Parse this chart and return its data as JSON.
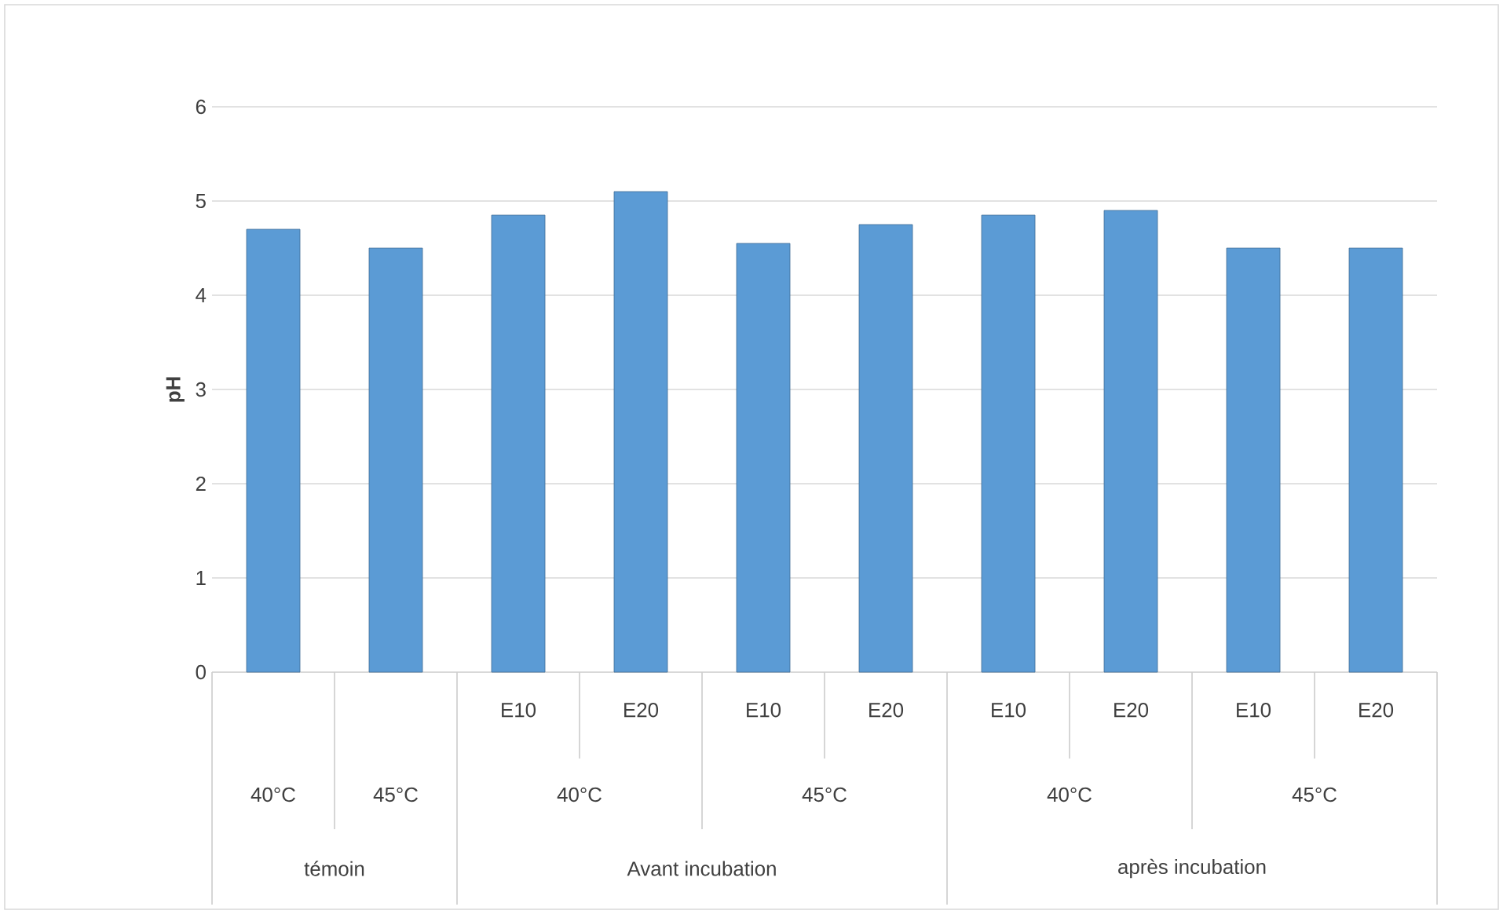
{
  "chart_data": {
    "type": "bar",
    "ylabel": "pH",
    "categories": [
      null,
      null,
      "E10",
      "E20",
      "E10",
      "E20",
      "E10",
      "E20",
      "E10",
      "E20"
    ],
    "values": [
      4.7,
      4.5,
      4.85,
      5.1,
      4.55,
      4.75,
      4.85,
      4.9,
      4.5,
      4.5
    ],
    "color": "#5b9bd5",
    "ylim": [
      0,
      6
    ],
    "yticks": [
      0,
      1,
      2,
      3,
      4,
      5,
      6
    ],
    "grid": "y",
    "annotations": [
      "40°C",
      "45°C",
      "40°C",
      "45°C",
      "40°C",
      "45°C",
      "témoin",
      "Avant incubation",
      "après incubation"
    ]
  }
}
